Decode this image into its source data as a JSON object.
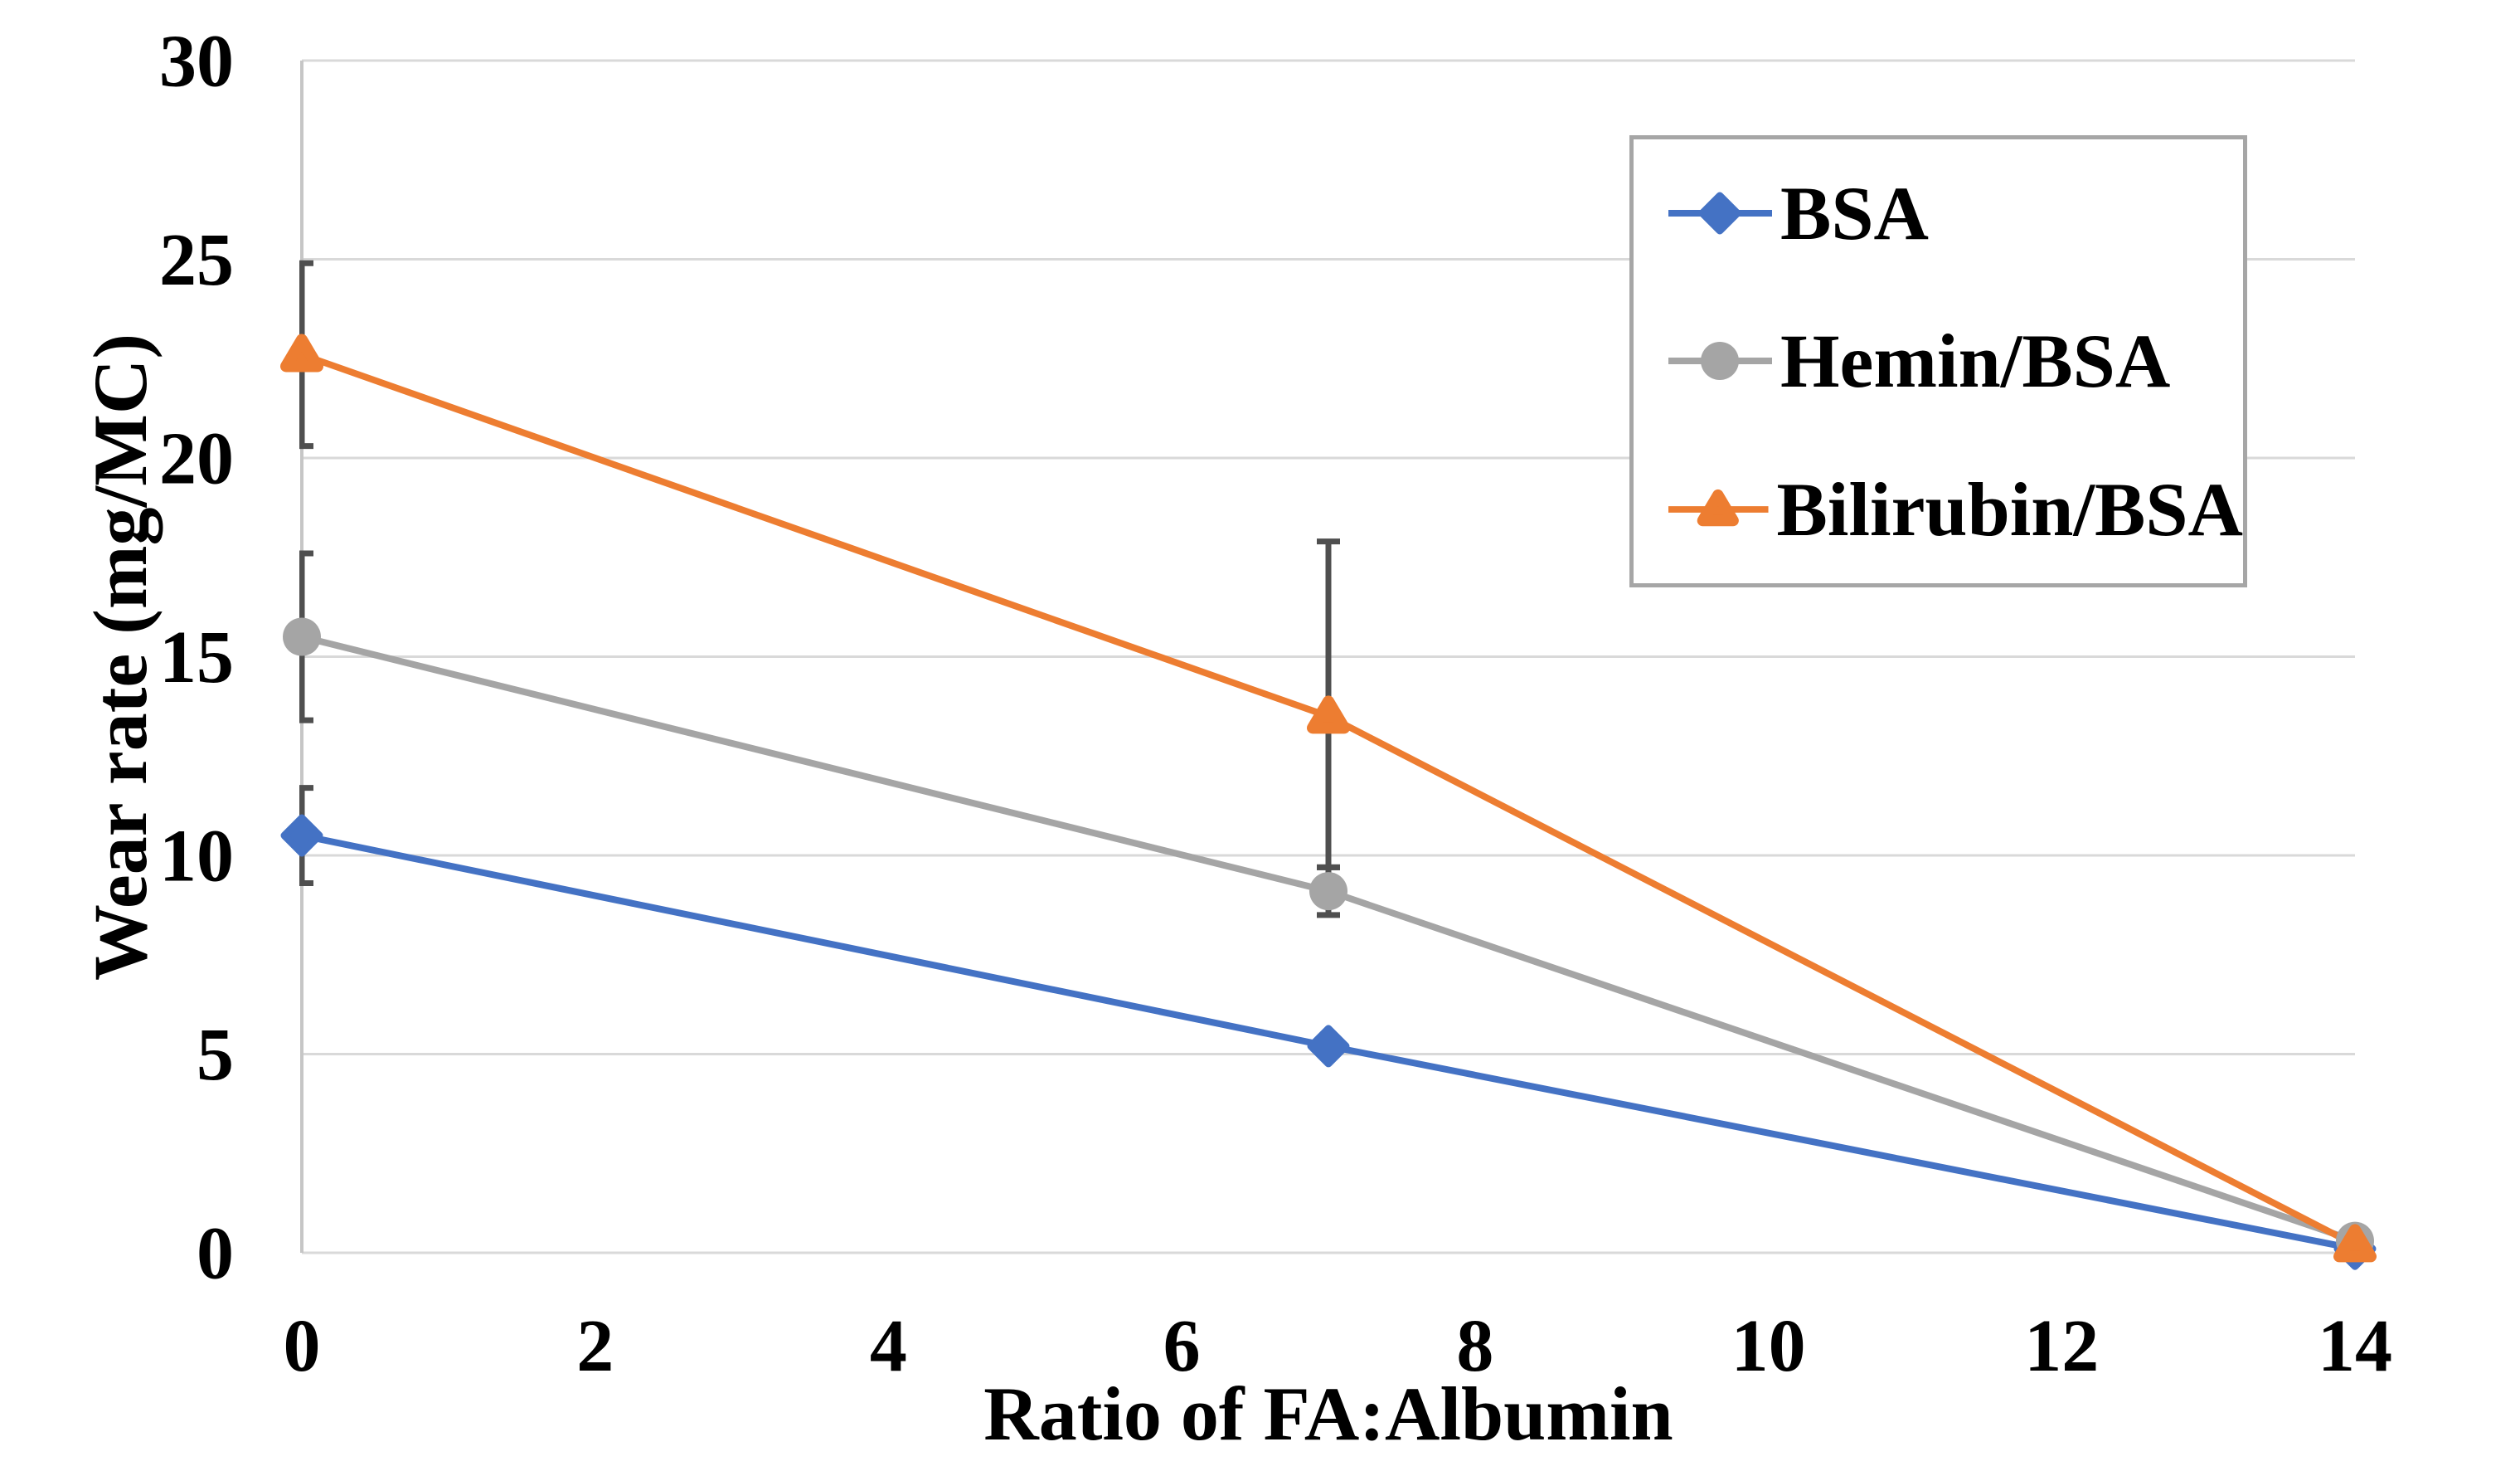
{
  "chart_data": {
    "type": "line",
    "title": "",
    "xlabel": "Ratio of FA:Albumin",
    "ylabel": "Wear rate (mg/MC)",
    "x": [
      0,
      7,
      14
    ],
    "series": [
      {
        "name": "BSA",
        "color": "#4472C4",
        "marker": "diamond",
        "values": [
          10.5,
          5.2,
          0.1
        ],
        "err_plus": [
          1.2,
          0,
          0
        ],
        "err_minus": [
          1.2,
          0,
          0
        ]
      },
      {
        "name": "Hemin/BSA",
        "color": "#A5A5A5",
        "marker": "circle",
        "values": [
          15.5,
          9.1,
          0.3
        ],
        "err_plus": [
          2.1,
          0.6,
          0
        ],
        "err_minus": [
          2.1,
          0.6,
          0
        ]
      },
      {
        "name": "Bilirubin/BSA",
        "color": "#ED7D31",
        "marker": "triangle",
        "values": [
          22.6,
          13.5,
          0.2
        ],
        "err_plus": [
          2.3,
          4.4,
          0
        ],
        "err_minus": [
          2.3,
          3.8,
          0
        ]
      }
    ],
    "xlim": [
      0,
      14
    ],
    "ylim": [
      0,
      30
    ],
    "xticks": [
      0,
      2,
      4,
      6,
      8,
      10,
      12,
      14
    ],
    "yticks": [
      0,
      5,
      10,
      15,
      20,
      25,
      30
    ],
    "grid": true,
    "legend_position": "top-right",
    "colors": {
      "gridline": "#D9D9D9",
      "axis_line": "#C6C6C6",
      "error_bar": "#4F4F4F",
      "legend_border": "#A6A6A6",
      "text": "#000000"
    }
  }
}
